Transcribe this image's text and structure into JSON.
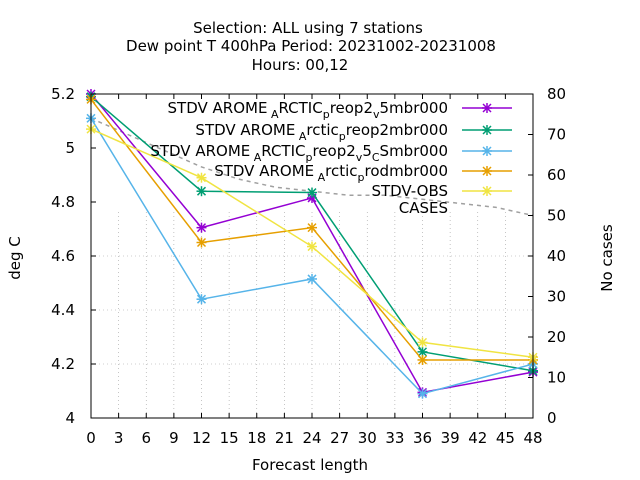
{
  "chart_data": {
    "type": "line",
    "title_lines": [
      "Selection: ALL using     7 stations",
      "Dew point T 400hPa   Period: 20231002-20231008",
      "Hours:  00,12"
    ],
    "xlabel": "Forecast length",
    "ylabel": "deg C",
    "y2label": "No cases",
    "xlim": [
      0,
      48
    ],
    "ylim": [
      4,
      5.2
    ],
    "y2lim": [
      0,
      80
    ],
    "xticks": [
      0,
      3,
      6,
      9,
      12,
      15,
      18,
      21,
      24,
      27,
      30,
      33,
      36,
      39,
      42,
      45,
      48
    ],
    "yticks": [
      4,
      4.2,
      4.4,
      4.6,
      4.8,
      5,
      5.2
    ],
    "ytick_labels": [
      "4",
      "4.2",
      "4.4",
      "4.6",
      "4.8",
      "5",
      "5.2"
    ],
    "y2ticks": [
      0,
      10,
      20,
      30,
      40,
      50,
      60,
      70,
      80
    ],
    "grid": "partial-dotted",
    "legend_position": "top-right",
    "x": [
      0,
      12,
      24,
      36,
      48
    ],
    "series": [
      {
        "name": "STDV AROME",
        "sub1": "A",
        "mid1": "RCTIC",
        "sub2": "p",
        "mid2": "reop2",
        "sub3": "v",
        "tail": "5mbr000",
        "color": "#9400d3",
        "values": [
          5.2,
          4.705,
          4.815,
          4.095,
          4.17
        ]
      },
      {
        "name": "STDV AROME",
        "sub1": "A",
        "mid1": "rctic",
        "sub2": "p",
        "mid2": "reop2mbr000",
        "color": "#009e73",
        "values": [
          5.19,
          4.84,
          4.835,
          4.245,
          4.175
        ]
      },
      {
        "name": "STDV AROME",
        "sub1": "A",
        "mid1": "RCTIC",
        "sub2": "p",
        "mid2": "reop2",
        "sub3": "v",
        "mid3": "5",
        "sub4": "C",
        "tail": "Smbr000",
        "color": "#56b4e9",
        "values": [
          5.11,
          4.44,
          4.515,
          4.09,
          4.2
        ]
      },
      {
        "name": "STDV AROME",
        "sub1": "A",
        "mid1": "rctic",
        "sub2": "p",
        "mid2": "rodmbr000",
        "color": "#e69f00",
        "values": [
          5.18,
          4.65,
          4.705,
          4.215,
          4.215
        ]
      },
      {
        "name": "STDV-OBS",
        "color": "#f0e442",
        "values": [
          5.07,
          4.89,
          4.635,
          4.28,
          4.225
        ]
      }
    ],
    "cases": {
      "name": "CASES",
      "color": "#a0a0a0",
      "values": [
        74,
        70,
        66,
        62,
        59,
        57,
        56,
        55,
        55,
        54,
        53,
        52,
        50
      ],
      "x": [
        0,
        4,
        8,
        12,
        16,
        20,
        24,
        28,
        32,
        36,
        40,
        44,
        48
      ]
    }
  }
}
